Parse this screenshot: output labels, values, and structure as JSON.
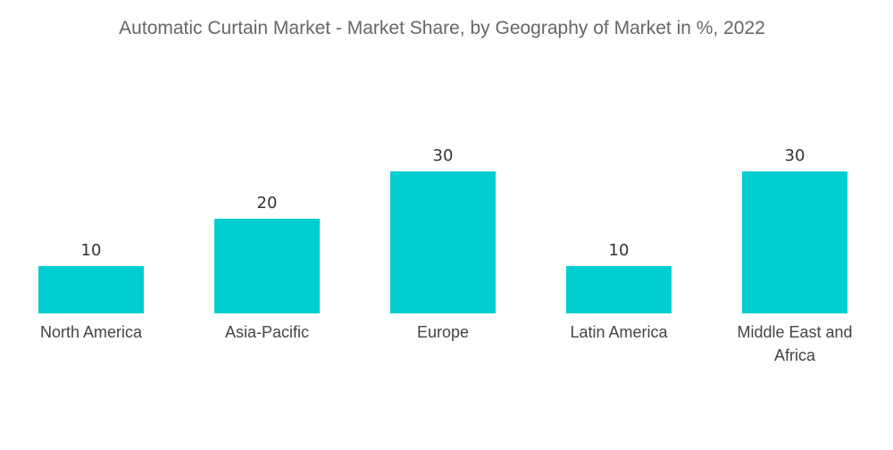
{
  "chart_data": {
    "type": "bar",
    "title": "Automatic Curtain Market - Market Share, by Geography of Market in %, 2022",
    "categories": [
      "North America",
      "Asia-Pacific",
      "Europe",
      "Latin America",
      "Middle East and Africa"
    ],
    "category_lines": [
      [
        "North America"
      ],
      [
        "Asia-Pacific"
      ],
      [
        "Europe"
      ],
      [
        "Latin America"
      ],
      [
        "Middle East and",
        "Africa"
      ]
    ],
    "values": [
      10,
      20,
      30,
      10,
      30
    ],
    "xlabel": "",
    "ylabel": "",
    "ylim": [
      0,
      30
    ],
    "grid": false,
    "legend": "none",
    "bar_color": "#00CED1",
    "show_data_labels": true
  }
}
